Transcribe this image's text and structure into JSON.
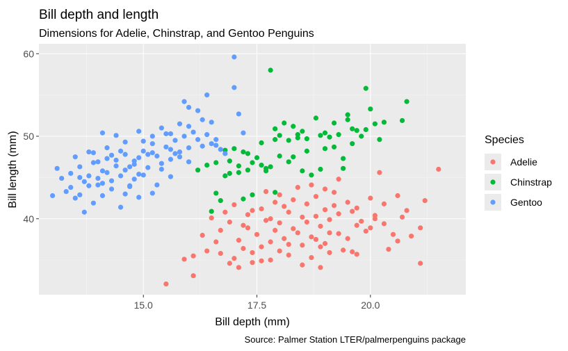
{
  "chart_data": {
    "type": "scatter",
    "title": "Bill depth and length",
    "subtitle": "Dimensions for Adelie, Chinstrap, and Gentoo Penguins",
    "caption": "Source: Palmer Station LTER/palmerpenguins package",
    "xlabel": "Bill depth (mm)",
    "ylabel": "Bill length (mm)",
    "xlim": [
      12.7,
      22.1
    ],
    "ylim": [
      30.8,
      61.2
    ],
    "xticks": [
      15.0,
      17.5,
      20.0
    ],
    "xtick_labels": [
      "15.0",
      "17.5",
      "20.0"
    ],
    "yticks": [
      40,
      50,
      60
    ],
    "ytick_labels": [
      "40",
      "50",
      "60"
    ],
    "grid": true,
    "panel_background": "#ebebeb",
    "legend": {
      "title": "Species",
      "position": "right"
    },
    "series": [
      {
        "name": "Adelie",
        "color": "#f8766d",
        "points": [
          [
            15.5,
            32.1
          ],
          [
            16.1,
            33.1
          ],
          [
            15.9,
            35.1
          ],
          [
            16.1,
            35.5
          ],
          [
            16.4,
            36.1
          ],
          [
            16.7,
            35.8
          ],
          [
            16.9,
            34.6
          ],
          [
            17.0,
            35.2
          ],
          [
            17.2,
            36.4
          ],
          [
            17.4,
            35.9
          ],
          [
            17.6,
            36.6
          ],
          [
            17.8,
            35.0
          ],
          [
            18.0,
            36.1
          ],
          [
            18.2,
            35.6
          ],
          [
            18.5,
            34.4
          ],
          [
            18.7,
            35.3
          ],
          [
            18.9,
            34.1
          ],
          [
            19.1,
            35.9
          ],
          [
            19.4,
            36.2
          ],
          [
            17.1,
            34.1
          ],
          [
            17.5,
            38.1
          ],
          [
            17.8,
            37.2
          ],
          [
            18.0,
            39.5
          ],
          [
            18.3,
            38.8
          ],
          [
            18.5,
            40.2
          ],
          [
            18.7,
            37.8
          ],
          [
            18.9,
            39.1
          ],
          [
            19.1,
            38.3
          ],
          [
            19.3,
            40.6
          ],
          [
            19.5,
            37.6
          ],
          [
            19.7,
            39.2
          ],
          [
            19.9,
            38.5
          ],
          [
            20.1,
            40.0
          ],
          [
            20.3,
            39.4
          ],
          [
            20.5,
            38.1
          ],
          [
            20.7,
            40.2
          ],
          [
            20.9,
            37.9
          ],
          [
            21.1,
            38.9
          ],
          [
            17.3,
            40.5
          ],
          [
            17.6,
            41.2
          ],
          [
            17.9,
            42.0
          ],
          [
            18.1,
            41.5
          ],
          [
            18.3,
            42.3
          ],
          [
            18.6,
            41.8
          ],
          [
            18.8,
            42.7
          ],
          [
            19.0,
            41.1
          ],
          [
            19.2,
            43.2
          ],
          [
            19.5,
            42.0
          ],
          [
            19.7,
            41.3
          ],
          [
            20.0,
            42.5
          ],
          [
            20.3,
            41.8
          ],
          [
            20.6,
            42.8
          ],
          [
            20.8,
            41.0
          ],
          [
            21.2,
            42.2
          ],
          [
            16.5,
            40.1
          ],
          [
            16.7,
            38.6
          ],
          [
            16.9,
            39.6
          ],
          [
            17.1,
            37.4
          ],
          [
            17.3,
            38.9
          ],
          [
            16.6,
            37.2
          ],
          [
            18.4,
            43.8
          ],
          [
            18.7,
            44.1
          ],
          [
            19.0,
            43.6
          ],
          [
            19.3,
            44.8
          ],
          [
            17.7,
            43.3
          ],
          [
            18.0,
            42.9
          ],
          [
            20.2,
            45.6
          ],
          [
            21.5,
            46.0
          ],
          [
            21.1,
            34.6
          ],
          [
            20.4,
            36.3
          ],
          [
            17.2,
            39.2
          ],
          [
            17.4,
            41.0
          ],
          [
            17.7,
            39.8
          ],
          [
            18.2,
            40.8
          ],
          [
            18.4,
            38.3
          ],
          [
            18.6,
            39.6
          ],
          [
            18.8,
            40.3
          ],
          [
            19.1,
            39.9
          ],
          [
            19.3,
            38.2
          ],
          [
            19.6,
            40.9
          ],
          [
            19.8,
            39.7
          ],
          [
            20.0,
            38.9
          ],
          [
            16.8,
            40.8
          ],
          [
            17.0,
            41.7
          ],
          [
            18.1,
            37.6
          ],
          [
            18.9,
            36.6
          ],
          [
            19.6,
            36.0
          ],
          [
            17.9,
            38.6
          ],
          [
            18.5,
            36.8
          ],
          [
            16.3,
            38.0
          ],
          [
            17.6,
            34.9
          ],
          [
            20.6,
            37.3
          ],
          [
            19.0,
            37.0
          ],
          [
            18.2,
            36.9
          ],
          [
            19.7,
            35.7
          ],
          [
            17.4,
            34.7
          ],
          [
            18.8,
            37.5
          ],
          [
            19.2,
            41.6
          ],
          [
            20.1,
            40.4
          ],
          [
            17.8,
            40.0
          ]
        ]
      },
      {
        "name": "Chinstrap",
        "color": "#00ba38",
        "points": [
          [
            17.8,
            58.0
          ],
          [
            19.9,
            55.8
          ],
          [
            20.8,
            54.2
          ],
          [
            20.0,
            53.3
          ],
          [
            19.5,
            52.6
          ],
          [
            18.8,
            52.2
          ],
          [
            19.2,
            51.6
          ],
          [
            18.3,
            51.2
          ],
          [
            17.9,
            50.9
          ],
          [
            18.5,
            50.6
          ],
          [
            19.0,
            50.4
          ],
          [
            19.7,
            50.7
          ],
          [
            20.3,
            51.7
          ],
          [
            20.7,
            51.9
          ],
          [
            18.0,
            50.1
          ],
          [
            18.4,
            49.8
          ],
          [
            18.9,
            50.1
          ],
          [
            19.3,
            50.2
          ],
          [
            19.8,
            50.0
          ],
          [
            17.6,
            49.2
          ],
          [
            17.9,
            49.6
          ],
          [
            18.2,
            49.5
          ],
          [
            18.6,
            49.7
          ],
          [
            19.1,
            49.9
          ],
          [
            19.6,
            49.1
          ],
          [
            16.8,
            48.3
          ],
          [
            17.0,
            48.5
          ],
          [
            17.3,
            47.9
          ],
          [
            17.5,
            47.4
          ],
          [
            17.1,
            46.4
          ],
          [
            17.4,
            46.8
          ],
          [
            17.8,
            46.3
          ],
          [
            18.2,
            46.9
          ],
          [
            18.5,
            45.8
          ],
          [
            18.9,
            46.0
          ],
          [
            16.6,
            46.8
          ],
          [
            16.4,
            46.5
          ],
          [
            16.8,
            45.2
          ],
          [
            17.1,
            45.6
          ],
          [
            17.3,
            45.9
          ],
          [
            16.6,
            43.1
          ],
          [
            17.4,
            42.9
          ],
          [
            17.9,
            43.2
          ],
          [
            16.7,
            42.2
          ],
          [
            18.7,
            45.3
          ],
          [
            19.4,
            46.1
          ],
          [
            16.5,
            40.9
          ],
          [
            17.2,
            48.1
          ],
          [
            18.0,
            47.6
          ],
          [
            19.4,
            47.3
          ],
          [
            19.0,
            48.5
          ],
          [
            19.6,
            50.9
          ],
          [
            20.2,
            49.6
          ],
          [
            18.1,
            51.6
          ],
          [
            17.7,
            46.1
          ],
          [
            16.9,
            45.5
          ],
          [
            16.2,
            45.9
          ],
          [
            17.2,
            42.4
          ],
          [
            19.2,
            48.7
          ],
          [
            18.6,
            48.2
          ],
          [
            19.5,
            52.0
          ],
          [
            20.1,
            51.5
          ],
          [
            17.7,
            45.8
          ],
          [
            18.3,
            47.5
          ],
          [
            19.9,
            50.8
          ],
          [
            18.4,
            50.2
          ],
          [
            17.6,
            46.5
          ],
          [
            16.9,
            47.0
          ]
        ]
      },
      {
        "name": "Gentoo",
        "color": "#619cff",
        "points": [
          [
            13.1,
            46.1
          ],
          [
            13.2,
            44.9
          ],
          [
            13.4,
            45.5
          ],
          [
            13.6,
            46.3
          ],
          [
            13.7,
            44.5
          ],
          [
            13.8,
            45.2
          ],
          [
            13.9,
            46.8
          ],
          [
            14.0,
            44.1
          ],
          [
            14.1,
            45.8
          ],
          [
            14.2,
            47.3
          ],
          [
            14.3,
            44.6
          ],
          [
            14.4,
            46.4
          ],
          [
            14.5,
            45.2
          ],
          [
            14.6,
            47.8
          ],
          [
            14.7,
            44.0
          ],
          [
            14.8,
            46.6
          ],
          [
            14.9,
            45.4
          ],
          [
            15.0,
            48.2
          ],
          [
            15.1,
            46.2
          ],
          [
            15.2,
            49.1
          ],
          [
            15.3,
            47.6
          ],
          [
            15.4,
            46.0
          ],
          [
            15.5,
            48.7
          ],
          [
            15.6,
            47.2
          ],
          [
            15.7,
            49.5
          ],
          [
            15.8,
            48.1
          ],
          [
            15.9,
            50.0
          ],
          [
            16.0,
            48.6
          ],
          [
            16.1,
            50.5
          ],
          [
            16.2,
            49.6
          ],
          [
            16.3,
            48.8
          ],
          [
            16.4,
            50.2
          ],
          [
            16.5,
            49.1
          ],
          [
            13.0,
            42.8
          ],
          [
            13.3,
            43.3
          ],
          [
            13.5,
            42.5
          ],
          [
            13.7,
            40.8
          ],
          [
            13.9,
            41.9
          ],
          [
            14.1,
            42.8
          ],
          [
            14.3,
            43.6
          ],
          [
            14.5,
            41.4
          ],
          [
            14.7,
            43.9
          ],
          [
            14.9,
            42.6
          ],
          [
            15.2,
            43.1
          ],
          [
            13.5,
            47.5
          ],
          [
            13.8,
            48.1
          ],
          [
            14.2,
            48.6
          ],
          [
            14.4,
            50.1
          ],
          [
            14.6,
            49.3
          ],
          [
            14.9,
            50.6
          ],
          [
            15.2,
            50.0
          ],
          [
            15.4,
            51.0
          ],
          [
            15.6,
            50.3
          ],
          [
            15.8,
            51.5
          ],
          [
            16.0,
            51.2
          ],
          [
            16.3,
            52.0
          ],
          [
            16.5,
            51.7
          ],
          [
            15.9,
            54.2
          ],
          [
            16.0,
            53.5
          ],
          [
            16.2,
            53.1
          ],
          [
            16.4,
            55.0
          ],
          [
            17.0,
            59.6
          ],
          [
            17.0,
            55.9
          ],
          [
            17.1,
            52.7
          ],
          [
            17.2,
            50.4
          ],
          [
            16.6,
            49.6
          ],
          [
            16.7,
            48.4
          ],
          [
            16.8,
            47.9
          ],
          [
            16.0,
            46.9
          ],
          [
            15.6,
            45.1
          ],
          [
            15.3,
            44.1
          ],
          [
            15.0,
            45.3
          ],
          [
            14.8,
            44.8
          ],
          [
            14.6,
            45.9
          ],
          [
            14.4,
            47.1
          ],
          [
            14.2,
            45.6
          ],
          [
            14.0,
            46.9
          ],
          [
            13.9,
            48.0
          ],
          [
            14.1,
            50.4
          ],
          [
            13.6,
            45.0
          ],
          [
            14.8,
            47.0
          ],
          [
            15.1,
            47.8
          ],
          [
            15.4,
            46.7
          ],
          [
            15.6,
            48.4
          ],
          [
            15.8,
            47.5
          ],
          [
            14.5,
            48.2
          ],
          [
            14.3,
            47.7
          ],
          [
            15.0,
            49.4
          ],
          [
            15.2,
            48.0
          ],
          [
            14.0,
            44.9
          ],
          [
            13.6,
            42.9
          ],
          [
            13.8,
            44.0
          ],
          [
            14.6,
            43.0
          ],
          [
            15.5,
            50.3
          ],
          [
            16.6,
            48.9
          ],
          [
            14.9,
            47.4
          ],
          [
            13.4,
            43.8
          ],
          [
            15.7,
            47.9
          ],
          [
            14.1,
            44.3
          ],
          [
            14.7,
            46.3
          ]
        ]
      }
    ]
  }
}
